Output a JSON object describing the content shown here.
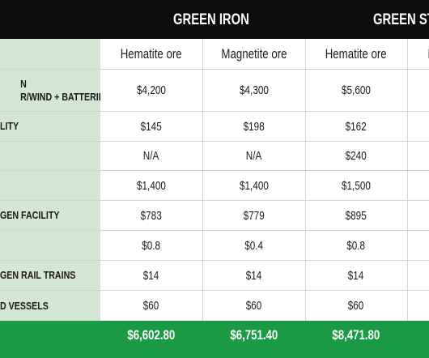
{
  "header": {
    "green_iron": "GREEN IRON",
    "green_steel": "GREEN STE"
  },
  "subheaders": [
    "Hematite ore",
    "Magnetite ore",
    "Hematite ore",
    "M"
  ],
  "rows": [
    {
      "label_lines": [
        "N",
        "R/WIND + BATTERIES)"
      ],
      "values": [
        "$4,200",
        "$4,300",
        "$5,600"
      ]
    },
    {
      "label_lines": [
        "LITY"
      ],
      "values": [
        "$145",
        "$198",
        "$162"
      ]
    },
    {
      "label_lines": [
        ""
      ],
      "values": [
        "N/A",
        "N/A",
        "$240"
      ]
    },
    {
      "label_lines": [
        ""
      ],
      "values": [
        "$1,400",
        "$1,400",
        "$1,500"
      ]
    },
    {
      "label_lines": [
        "GEN FACILITY"
      ],
      "values": [
        "$783",
        "$779",
        "$895"
      ]
    },
    {
      "label_lines": [
        ""
      ],
      "values": [
        "$0.8",
        "$0.4",
        "$0.8"
      ]
    },
    {
      "label_lines": [
        "GEN RAIL TRAINS"
      ],
      "values": [
        "$14",
        "$14",
        "$14"
      ]
    },
    {
      "label_lines": [
        "D VESSELS"
      ],
      "values": [
        "$60",
        "$60",
        "$60"
      ]
    }
  ],
  "totals": [
    "$6,602.80",
    "$6,751.40",
    "$8,471.80"
  ],
  "colors": {
    "header_bg": "#0d0d0d",
    "label_column_bg": "#d4e7d4",
    "total_row_bg": "#1a9a44"
  }
}
